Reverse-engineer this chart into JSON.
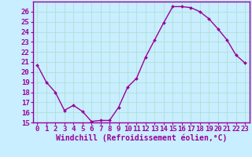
{
  "x": [
    0,
    1,
    2,
    3,
    4,
    5,
    6,
    7,
    8,
    9,
    10,
    11,
    12,
    13,
    14,
    15,
    16,
    17,
    18,
    19,
    20,
    21,
    22,
    23
  ],
  "y": [
    20.7,
    19.0,
    18.0,
    16.2,
    16.7,
    16.1,
    15.1,
    15.2,
    15.2,
    16.5,
    18.5,
    19.4,
    21.5,
    23.2,
    24.9,
    26.5,
    26.5,
    26.4,
    26.0,
    25.3,
    24.3,
    23.2,
    21.7,
    20.9
  ],
  "line_color": "#990099",
  "marker": "D",
  "marker_size": 2.0,
  "bg_color": "#c8eeff",
  "grid_color": "#aaddcc",
  "xlabel": "Windchill (Refroidissement éolien,°C)",
  "ylim": [
    15,
    27
  ],
  "xlim": [
    -0.5,
    23.5
  ],
  "yticks": [
    15,
    16,
    17,
    18,
    19,
    20,
    21,
    22,
    23,
    24,
    25,
    26
  ],
  "xticks": [
    0,
    1,
    2,
    3,
    4,
    5,
    6,
    7,
    8,
    9,
    10,
    11,
    12,
    13,
    14,
    15,
    16,
    17,
    18,
    19,
    20,
    21,
    22,
    23
  ],
  "tick_color": "#990099",
  "tick_label_color": "#990099",
  "xlabel_color": "#990099",
  "xlabel_fontsize": 7.0,
  "tick_fontsize": 6.5,
  "line_width": 1.0,
  "spine_color": "#990099",
  "border_color": "#990099"
}
